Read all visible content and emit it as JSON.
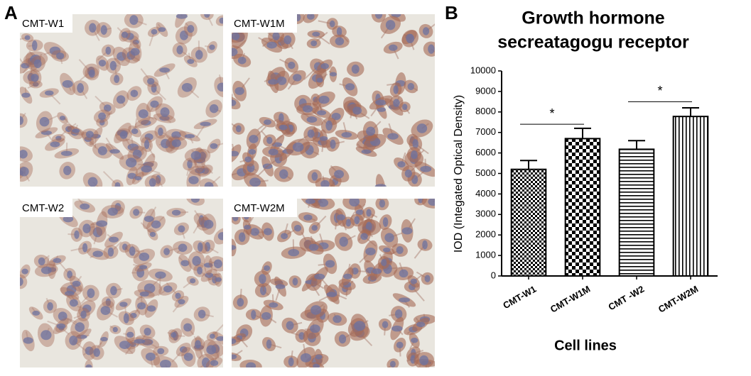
{
  "panel_a": {
    "label": "A",
    "images": [
      {
        "label": "CMT-W1"
      },
      {
        "label": "CMT-W1M"
      },
      {
        "label": "CMT-W2"
      },
      {
        "label": "CMT-W2M"
      }
    ]
  },
  "panel_b": {
    "label": "B"
  },
  "chart_data": {
    "type": "bar",
    "title": [
      "Growth hormone",
      "secreatagogu receptor"
    ],
    "x_label": "Cell lines",
    "y_label": "IOD (Integated Optical Density)",
    "categories": [
      "CMT-W1",
      "CMT-W1M",
      "CMT -W2",
      "CMT-W2M"
    ],
    "values": [
      5200,
      6700,
      6180,
      7780
    ],
    "errors": [
      430,
      500,
      420,
      420
    ],
    "patterns": [
      "checker-small",
      "checker-large",
      "horizontal",
      "vertical"
    ],
    "color": "#000000",
    "ylim": [
      0,
      10000
    ],
    "yticks": [
      0,
      1000,
      2000,
      3000,
      4000,
      5000,
      6000,
      7000,
      8000,
      9000,
      10000
    ],
    "significance": [
      {
        "label": "*",
        "groups": [
          0,
          1
        ],
        "y": 7400
      },
      {
        "label": "*",
        "groups": [
          2,
          3
        ],
        "y": 8500
      }
    ]
  }
}
